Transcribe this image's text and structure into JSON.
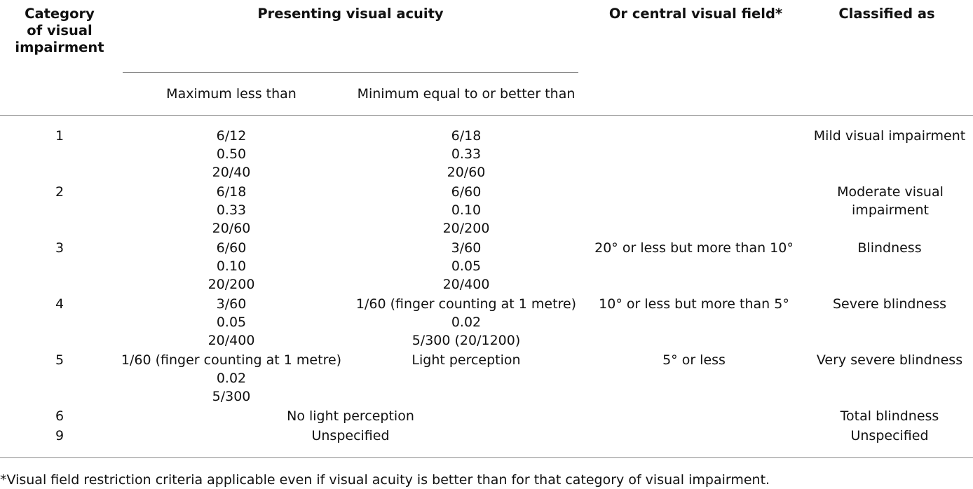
{
  "table": {
    "headers": {
      "category": [
        "Category",
        "of visual",
        "impairment"
      ],
      "acuity": "Presenting visual acuity",
      "acuity_max": "Maximum less than",
      "acuity_min": "Minimum equal to or better than",
      "field": "Or central visual field*",
      "classified": "Classified as"
    },
    "rows": [
      {
        "category": "1",
        "max": [
          "6/12",
          "0.50",
          "20/40"
        ],
        "min": [
          "6/18",
          "0.33",
          "20/60"
        ],
        "field": "",
        "classified": "Mild visual impairment"
      },
      {
        "category": "2",
        "max": [
          "6/18",
          "0.33",
          "20/60"
        ],
        "min": [
          "6/60",
          "0.10",
          "20/200"
        ],
        "field": "",
        "classified": "Moderate visual impairment"
      },
      {
        "category": "3",
        "max": [
          "6/60",
          "0.10",
          "20/200"
        ],
        "min": [
          "3/60",
          "0.05",
          "20/400"
        ],
        "field": "20° or less but more than 10°",
        "classified": "Blindness"
      },
      {
        "category": "4",
        "max": [
          "3/60",
          "0.05",
          "20/400"
        ],
        "min": [
          "1/60 (finger counting at 1 metre)",
          "0.02",
          "5/300 (20/1200)"
        ],
        "field": "10° or less but more than 5°",
        "classified": "Severe blindness"
      },
      {
        "category": "5",
        "max": [
          "1/60 (finger counting at 1 metre)",
          "0.02",
          "5/300"
        ],
        "min": [
          "Light perception"
        ],
        "field": "5° or less",
        "classified": "Very severe blindness"
      },
      {
        "category": "6",
        "span": "No light perception",
        "field": "",
        "classified": "Total blindness"
      },
      {
        "category": "9",
        "span": "Unspecified",
        "field": "",
        "classified": "Unspecified"
      }
    ],
    "footnote": "*Visual field restriction criteria applicable even if visual acuity is better than for that category of visual impairment."
  }
}
